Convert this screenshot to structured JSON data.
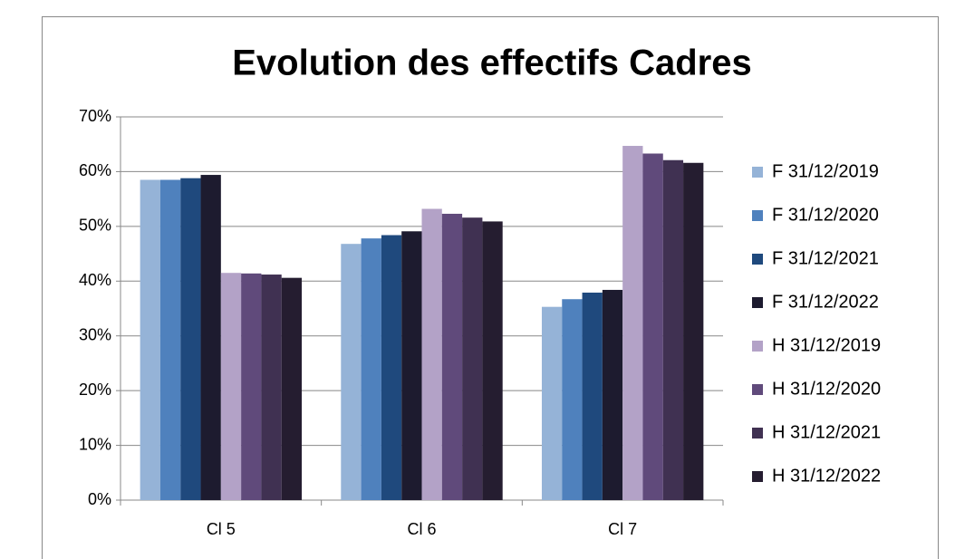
{
  "chart_data": {
    "type": "bar",
    "title": "Evolution des effectifs Cadres",
    "categories": [
      "Cl 5",
      "Cl 6",
      "Cl 7"
    ],
    "series": [
      {
        "name": "F 31/12/2019",
        "color": "#95b3d7",
        "values": [
          58.5,
          46.8,
          35.3
        ]
      },
      {
        "name": "F 31/12/2020",
        "color": "#4f81bd",
        "values": [
          58.5,
          47.8,
          36.7
        ]
      },
      {
        "name": "F 31/12/2021",
        "color": "#1f497d",
        "values": [
          58.8,
          48.4,
          37.9
        ]
      },
      {
        "name": "F 31/12/2022",
        "color": "#1d1b2f",
        "values": [
          59.4,
          49.1,
          38.4
        ]
      },
      {
        "name": "H 31/12/2019",
        "color": "#b3a2c7",
        "values": [
          41.5,
          53.2,
          64.7
        ]
      },
      {
        "name": "H 31/12/2020",
        "color": "#604a7b",
        "values": [
          41.4,
          52.3,
          63.3
        ]
      },
      {
        "name": "H 31/12/2021",
        "color": "#403152",
        "values": [
          41.2,
          51.6,
          62.1
        ]
      },
      {
        "name": "H 31/12/2022",
        "color": "#251d30",
        "values": [
          40.6,
          50.9,
          61.6
        ]
      }
    ],
    "ylim": [
      0,
      70
    ],
    "yticks": [
      {
        "value": 0,
        "label": "0%"
      },
      {
        "value": 10,
        "label": "10%"
      },
      {
        "value": 20,
        "label": "20%"
      },
      {
        "value": 30,
        "label": "30%"
      },
      {
        "value": 40,
        "label": "40%"
      },
      {
        "value": 50,
        "label": "50%"
      },
      {
        "value": 60,
        "label": "60%"
      },
      {
        "value": 70,
        "label": "70%"
      }
    ],
    "grid": true,
    "legend": "right"
  }
}
